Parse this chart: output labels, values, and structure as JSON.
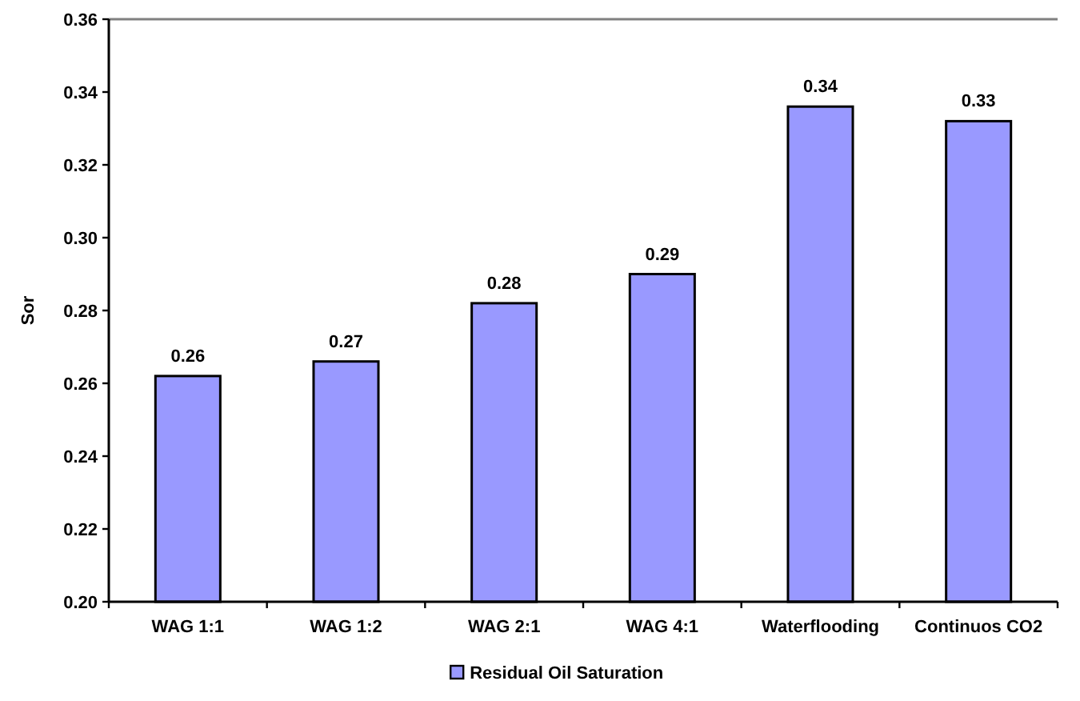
{
  "chart_data": {
    "type": "bar",
    "ylabel": "Sor",
    "categories": [
      "WAG 1:1",
      "WAG 1:2",
      "WAG 2:1",
      "WAG 4:1",
      "Waterflooding",
      "Continuos CO2"
    ],
    "series": [
      {
        "name": "Residual Oil Saturation",
        "color": "#9999ff",
        "values": [
          0.262,
          0.266,
          0.282,
          0.29,
          0.336,
          0.332
        ],
        "value_labels": [
          "0.26",
          "0.27",
          "0.28",
          "0.29",
          "0.34",
          "0.33"
        ]
      }
    ],
    "ylim": [
      0.2,
      0.36
    ],
    "yticks": [
      {
        "value": 0.2,
        "label": "0.20"
      },
      0.22,
      0.24,
      0.26,
      0.28,
      {
        "value": 0.3,
        "label": "0.30"
      },
      0.32,
      0.34,
      0.36
    ],
    "legend": "bottom"
  }
}
